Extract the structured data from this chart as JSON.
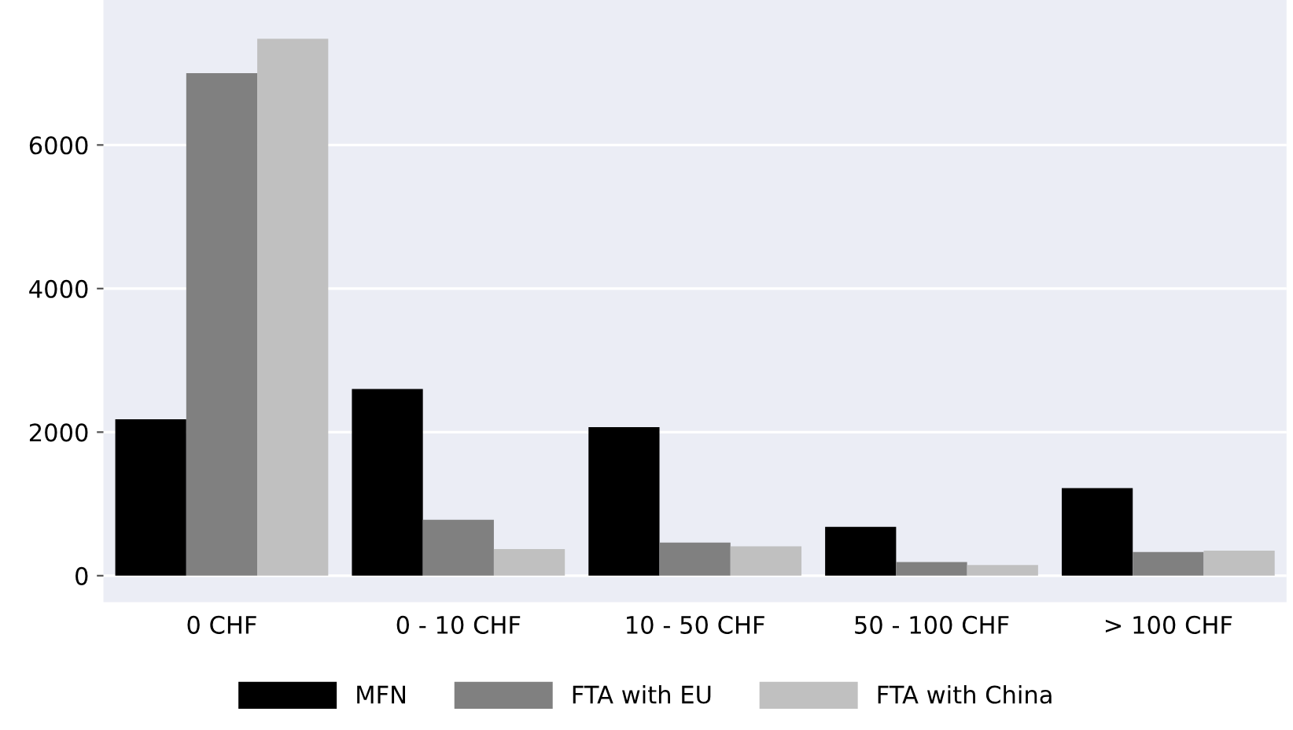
{
  "chart_data": {
    "type": "bar",
    "categories": [
      "0 CHF",
      "0 - 10 CHF",
      "10 - 50 CHF",
      "50 - 100 CHF",
      "> 100 CHF"
    ],
    "series": [
      {
        "name": "MFN",
        "color": "#000000",
        "values": [
          2180,
          2600,
          2070,
          680,
          1220
        ]
      },
      {
        "name": "FTA with EU",
        "color": "#808080",
        "values": [
          7000,
          780,
          460,
          190,
          330
        ]
      },
      {
        "name": "FTA with China",
        "color": "#c0c0c0",
        "values": [
          7480,
          370,
          410,
          150,
          350
        ]
      }
    ],
    "ylim": [
      -370,
      8020
    ],
    "yticks": [
      0,
      2000,
      4000,
      6000
    ],
    "grid": "y",
    "legend": "bottom"
  }
}
